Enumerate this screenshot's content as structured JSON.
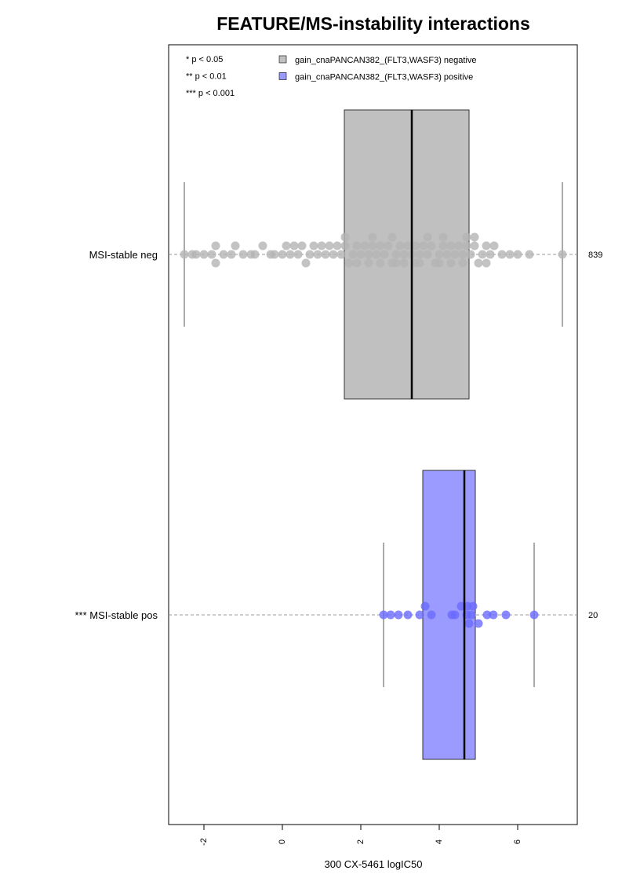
{
  "chart_data": {
    "type": "box",
    "title": "FEATURE/MS-instability interactions",
    "xlabel": "300 CX-5461 logIC50",
    "xlim": [
      -2.9,
      7.52
    ],
    "xticks": [
      -2,
      0,
      2,
      4,
      6
    ],
    "notes": [
      "* p < 0.05",
      "** p < 0.01",
      "*** p < 0.001"
    ],
    "groups": [
      {
        "name": "gain_cnaPANCAN382_(FLT3,WASF3) negative",
        "label": "MSI-stable neg",
        "n": 839,
        "color": "#b4b4b4",
        "box_color": "#c0c0c0",
        "whisker_low": -2.5,
        "q1": 1.58,
        "median": 3.3,
        "q3": 4.76,
        "whisker_high": 7.14,
        "points": [
          -2.5,
          -2.3,
          -2.2,
          -2.0,
          -1.8,
          -1.7,
          -1.7,
          -1.5,
          -1.3,
          -1.2,
          -1.0,
          -0.8,
          -0.7,
          -0.5,
          -0.3,
          -0.2,
          0,
          0.1,
          0.2,
          0.3,
          0.4,
          0.5,
          0.6,
          0.7,
          0.8,
          0.9,
          1.0,
          1.1,
          1.2,
          1.3,
          1.4,
          1.5,
          1.6,
          1.7,
          1.8,
          1.9,
          2.0,
          2.1,
          2.2,
          2.3,
          2.4,
          2.5,
          2.6,
          2.7,
          2.8,
          2.9,
          3.0,
          3.1,
          3.2,
          3.3,
          3.4,
          3.5,
          3.6,
          3.7,
          3.8,
          3.9,
          4.0,
          4.1,
          4.2,
          4.3,
          4.4,
          4.5,
          4.6,
          4.7,
          4.8,
          4.9,
          5.0,
          5.1,
          5.2,
          5.3,
          5.4,
          5.6,
          5.8,
          6.0,
          6.3,
          7.14,
          1.6,
          1.9,
          2.2,
          2.5,
          2.8,
          3.1,
          3.4,
          3.7,
          4.0,
          4.3,
          4.6,
          4.9,
          5.2,
          2.3,
          2.9,
          3.5,
          4.1,
          4.7
        ]
      },
      {
        "name": "gain_cnaPANCAN382_(FLT3,WASF3) positive",
        "label": "*** MSI-stable pos",
        "n": 20,
        "color": "#6a6aff",
        "box_color": "#9b9bff",
        "whisker_low": 2.58,
        "q1": 3.58,
        "median": 4.64,
        "q3": 4.92,
        "whisker_high": 6.42,
        "points": [
          2.58,
          2.76,
          2.96,
          3.2,
          3.5,
          3.64,
          3.8,
          4.32,
          4.4,
          4.56,
          4.7,
          4.72,
          4.76,
          4.82,
          4.86,
          5.0,
          5.22,
          5.38,
          5.7,
          6.42
        ]
      }
    ]
  }
}
